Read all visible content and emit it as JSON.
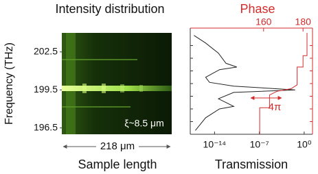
{
  "chart_data": [
    {
      "type": "heatmap",
      "title": "Intensity distribution",
      "ylabel": "Frequency (THz)",
      "ylim": [
        196,
        204
      ],
      "yticks": [
        196.5,
        199.5,
        202.5
      ],
      "xlabel": "Sample length",
      "span_label": "218 μm",
      "annotation": "ξ~8.5 μm"
    },
    {
      "type": "line",
      "title": "Phase",
      "xlabel": "Transmission",
      "xscale": "log",
      "xlim": [
        1.6e-18,
        20
      ],
      "xticks": [
        {
          "value": 1e-14,
          "label": "10⁻¹⁴"
        },
        {
          "value": 1e-07,
          "label": "10⁻⁷"
        },
        {
          "value": 1,
          "label": "10⁰"
        }
      ],
      "x2lim": [
        122.8,
        184.8
      ],
      "x2ticks": [
        160,
        180
      ],
      "x2color": "#d42a2a",
      "ylim": [
        196,
        204
      ],
      "yticks": [
        197,
        198,
        199,
        200,
        201,
        202,
        203
      ],
      "annotation": "4π",
      "series": [
        {
          "color": "#222222",
          "y": [
            203.8,
            203.2,
            202.4,
            201.6,
            201.3,
            201.1,
            200.5,
            200.1,
            199.8,
            199.5,
            199.3,
            198.8,
            198.2,
            198.0,
            197.3,
            196.3
          ],
          "values": [
            6e-18,
            4e-16,
            4e-14,
            6e-13,
            3e-11,
            6e-14,
            4e-16,
            1.6e-15,
            1e-11,
            0.04,
            1e-11,
            4e-14,
            1e-11,
            6e-14,
            4e-16,
            1e-17
          ]
        },
        {
          "color": "#d42a2a",
          "axis": "x2",
          "y": [
            196.0,
            198.1,
            198.1,
            199.1,
            199.4,
            199.6,
            199.9,
            201.3,
            201.3,
            202.2,
            202.2,
            204.0
          ],
          "values": [
            158,
            158,
            163,
            163,
            167,
            174,
            177,
            177,
            180,
            180,
            182,
            182
          ]
        }
      ]
    }
  ]
}
